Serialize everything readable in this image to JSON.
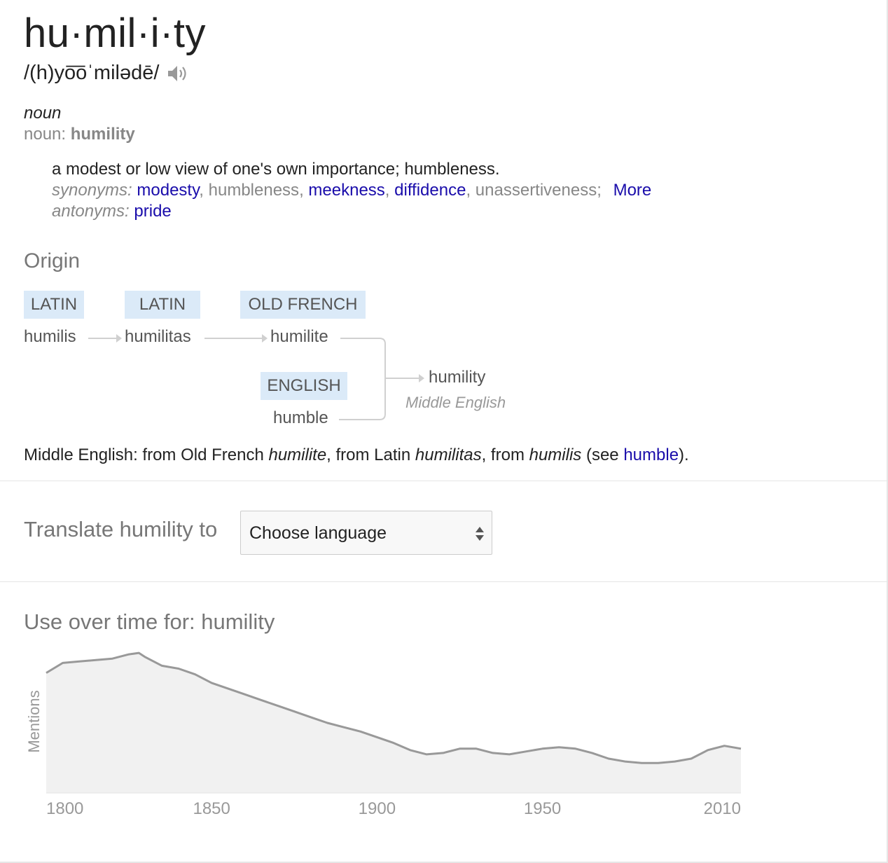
{
  "entry": {
    "word": "hu·mil·i·ty",
    "pronunciation": "/(h)yo͞oˈmilədē/",
    "speaker_icon": "speaker-icon",
    "part_of_speech": "noun",
    "pos_prefix": "noun:",
    "pos_word": "humility",
    "definition": "a modest or low view of one's own importance; humbleness.",
    "synonyms_label": "synonyms:",
    "synonyms": [
      {
        "text": "modesty",
        "link": true
      },
      {
        "text": "humbleness",
        "link": false
      },
      {
        "text": "meekness",
        "link": true
      },
      {
        "text": "diffidence",
        "link": true
      },
      {
        "text": "unassertiveness",
        "link": false
      }
    ],
    "more_label": "More",
    "antonyms_label": "antonyms:",
    "antonym": "pride"
  },
  "origin": {
    "title": "Origin",
    "tags": [
      "LATIN",
      "LATIN",
      "OLD FRENCH",
      "ENGLISH"
    ],
    "words": [
      "humilis",
      "humilitas",
      "humilite",
      "humble",
      "humility"
    ],
    "result_language": "Middle English",
    "sentence": {
      "part1": "Middle English: from Old French ",
      "it1": "humilite",
      "part2": ", from Latin ",
      "it2": "humilitas",
      "part3": ", from ",
      "it3": "humilis",
      "part4": " (see ",
      "link": "humble",
      "part5": ")."
    }
  },
  "translate": {
    "label": "Translate humility to",
    "select_value": "Choose language"
  },
  "usage": {
    "title": "Use over time for: humility"
  },
  "chart_data": {
    "type": "area",
    "title": "Use over time for: humility",
    "ylabel": "Mentions",
    "xlabel": "",
    "xlim": [
      1800,
      2010
    ],
    "ylim": [
      0,
      1
    ],
    "x_ticks": [
      "1800",
      "1850",
      "1900",
      "1950",
      "2010"
    ],
    "grid": false,
    "line_color": "#999999",
    "fill_color": "#f1f1f1",
    "x": [
      1800,
      1805,
      1810,
      1815,
      1820,
      1825,
      1828,
      1830,
      1835,
      1840,
      1845,
      1850,
      1855,
      1860,
      1865,
      1870,
      1875,
      1880,
      1885,
      1890,
      1895,
      1900,
      1905,
      1910,
      1915,
      1920,
      1925,
      1930,
      1935,
      1940,
      1945,
      1950,
      1955,
      1960,
      1965,
      1970,
      1975,
      1980,
      1985,
      1990,
      1995,
      2000,
      2005,
      2010
    ],
    "y": [
      0.84,
      0.91,
      0.92,
      0.93,
      0.94,
      0.97,
      0.98,
      0.95,
      0.89,
      0.87,
      0.83,
      0.77,
      0.73,
      0.69,
      0.65,
      0.61,
      0.57,
      0.53,
      0.49,
      0.46,
      0.43,
      0.39,
      0.35,
      0.3,
      0.27,
      0.28,
      0.31,
      0.31,
      0.28,
      0.27,
      0.29,
      0.31,
      0.32,
      0.31,
      0.28,
      0.24,
      0.22,
      0.21,
      0.21,
      0.22,
      0.24,
      0.3,
      0.33,
      0.31
    ]
  }
}
